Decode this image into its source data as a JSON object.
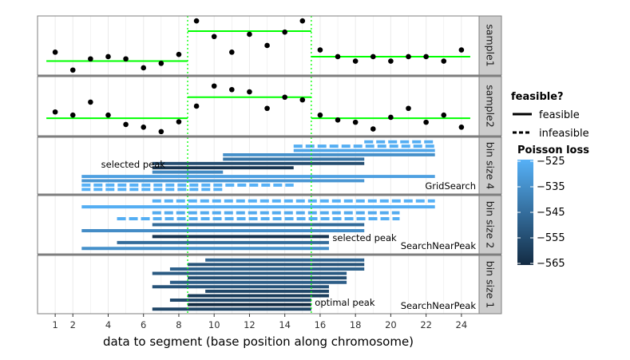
{
  "chart_data": {
    "type": "faceted-segment-plot",
    "xlabel": "data to segment (base position along chromosome)",
    "xlim": [
      0,
      25
    ],
    "x_ticks": [
      1,
      2,
      4,
      6,
      8,
      10,
      12,
      14,
      16,
      18,
      20,
      22,
      24
    ],
    "peak_boundaries": [
      8.5,
      15.5
    ],
    "panels": [
      {
        "label": "sample1",
        "type": "data",
        "ylim": [
          0,
          10
        ],
        "points": [
          [
            1,
            4.4
          ],
          [
            2,
            0.4
          ],
          [
            3,
            2.9
          ],
          [
            4,
            3.4
          ],
          [
            5,
            2.9
          ],
          [
            6,
            0.9
          ],
          [
            7,
            1.9
          ],
          [
            8,
            3.9
          ],
          [
            9,
            11.4
          ],
          [
            10,
            7.9
          ],
          [
            11,
            4.4
          ],
          [
            12,
            8.4
          ],
          [
            13,
            5.9
          ],
          [
            14,
            8.9
          ],
          [
            15,
            11.4
          ],
          [
            16,
            4.9
          ],
          [
            17,
            3.4
          ],
          [
            18,
            2.4
          ],
          [
            19,
            3.4
          ],
          [
            20,
            2.4
          ],
          [
            21,
            3.4
          ],
          [
            22,
            3.4
          ],
          [
            23,
            2.4
          ],
          [
            24,
            4.9
          ]
        ],
        "segments": [
          [
            0.5,
            8.5,
            2.4
          ],
          [
            8.5,
            15.5,
            9.1
          ],
          [
            15.5,
            24.5,
            3.4
          ]
        ]
      },
      {
        "label": "sample2",
        "type": "data",
        "ylim": [
          0,
          10
        ],
        "points": [
          [
            1,
            4.6
          ],
          [
            2,
            3.9
          ],
          [
            3,
            6.8
          ],
          [
            4,
            3.9
          ],
          [
            5,
            1.8
          ],
          [
            6,
            1.2
          ],
          [
            7,
            0.2
          ],
          [
            8,
            2.4
          ],
          [
            9,
            5.9
          ],
          [
            10,
            10.4
          ],
          [
            11,
            9.6
          ],
          [
            12,
            9.1
          ],
          [
            13,
            5.4
          ],
          [
            14,
            7.9
          ],
          [
            15,
            7.3
          ],
          [
            16,
            3.9
          ],
          [
            17,
            2.8
          ],
          [
            18,
            2.3
          ],
          [
            19,
            0.8
          ],
          [
            20,
            3.4
          ],
          [
            21,
            5.4
          ],
          [
            22,
            2.3
          ],
          [
            23,
            3.9
          ],
          [
            24,
            1.2
          ]
        ],
        "segments": [
          [
            0.5,
            8.5,
            3.2
          ],
          [
            8.5,
            15.5,
            7.9
          ],
          [
            15.5,
            24.5,
            3.2
          ]
        ]
      },
      {
        "label": "bin size 4",
        "type": "peaks",
        "algorithm": "GridSearch",
        "annotation": "selected peak",
        "annotation_x": 3.6,
        "rows": [
          {
            "start": 18.5,
            "end": 22.5,
            "loss": -526,
            "feasible": false
          },
          {
            "start": 14.5,
            "end": 22.5,
            "loss": -526,
            "feasible": false
          },
          {
            "start": 14.5,
            "end": 22.5,
            "loss": -528,
            "feasible": true
          },
          {
            "start": 10.5,
            "end": 22.5,
            "loss": -535,
            "feasible": true
          },
          {
            "start": 10.5,
            "end": 18.5,
            "loss": -543,
            "feasible": true
          },
          {
            "start": 6.5,
            "end": 18.5,
            "loss": -555,
            "feasible": true
          },
          {
            "start": 6.5,
            "end": 14.5,
            "loss": -562,
            "feasible": true
          },
          {
            "start": 6.5,
            "end": 10.5,
            "loss": -537,
            "feasible": true
          },
          {
            "start": 2.5,
            "end": 22.5,
            "loss": -530,
            "feasible": true
          },
          {
            "start": 2.5,
            "end": 18.5,
            "loss": -533,
            "feasible": true
          },
          {
            "start": 2.5,
            "end": 14.5,
            "loss": -525,
            "feasible": false
          },
          {
            "start": 2.5,
            "end": 10.5,
            "loss": -525,
            "feasible": false
          }
        ]
      },
      {
        "label": "bin size 2",
        "type": "peaks",
        "algorithm": "SearchNearPeak",
        "annotation": "selected peak",
        "annotation_x": 16.7,
        "rows": [
          {
            "start": 6.5,
            "end": 22.5,
            "loss": -525,
            "feasible": false
          },
          {
            "start": 2.5,
            "end": 22.5,
            "loss": -526,
            "feasible": true
          },
          {
            "start": 6.5,
            "end": 20.5,
            "loss": -527,
            "feasible": false
          },
          {
            "start": 4.5,
            "end": 20.5,
            "loss": -526,
            "feasible": false
          },
          {
            "start": 6.5,
            "end": 18.5,
            "loss": -546,
            "feasible": true
          },
          {
            "start": 2.5,
            "end": 18.5,
            "loss": -536,
            "feasible": true
          },
          {
            "start": 6.5,
            "end": 16.5,
            "loss": -562,
            "feasible": true
          },
          {
            "start": 4.5,
            "end": 16.5,
            "loss": -546,
            "feasible": true
          },
          {
            "start": 2.5,
            "end": 16.5,
            "loss": -535,
            "feasible": true
          }
        ]
      },
      {
        "label": "bin size 1",
        "type": "peaks",
        "algorithm": "SearchNearPeak",
        "annotation": "optimal peak",
        "annotation_x": 15.7,
        "rows": [
          {
            "start": 9.5,
            "end": 18.5,
            "loss": -548,
            "feasible": true
          },
          {
            "start": 8.5,
            "end": 18.5,
            "loss": -553,
            "feasible": true
          },
          {
            "start": 7.5,
            "end": 18.5,
            "loss": -549,
            "feasible": true
          },
          {
            "start": 6.5,
            "end": 17.5,
            "loss": -551,
            "feasible": true
          },
          {
            "start": 8.5,
            "end": 17.5,
            "loss": -555,
            "feasible": true
          },
          {
            "start": 7.5,
            "end": 17.5,
            "loss": -550,
            "feasible": true
          },
          {
            "start": 6.5,
            "end": 16.5,
            "loss": -553,
            "feasible": true
          },
          {
            "start": 9.5,
            "end": 16.5,
            "loss": -557,
            "feasible": true
          },
          {
            "start": 8.5,
            "end": 16.5,
            "loss": -560,
            "feasible": true
          },
          {
            "start": 7.5,
            "end": 15.5,
            "loss": -556,
            "feasible": true
          },
          {
            "start": 8.5,
            "end": 15.5,
            "loss": -565,
            "feasible": true
          },
          {
            "start": 6.5,
            "end": 15.5,
            "loss": -557,
            "feasible": true
          }
        ]
      }
    ],
    "legend_feasible": {
      "title": "feasible?",
      "entries": [
        {
          "label": "feasible",
          "linetype": "solid"
        },
        {
          "label": "infeasible",
          "linetype": "dashed"
        }
      ]
    },
    "legend_loss": {
      "title": "Poisson loss",
      "range": [
        -565,
        -525
      ],
      "breaks": [
        -525,
        -535,
        -545,
        -555,
        -565
      ],
      "break_labels": [
        "−525",
        "−535",
        "−545",
        "−555",
        "−565"
      ],
      "low_color": "#132b43",
      "high_color": "#56b1f7"
    },
    "colors": {
      "segment": "#00ff00",
      "boundary": "#00ff00",
      "point": "#000000",
      "strip_bg": "#cccccc",
      "grid": "#ebebeb",
      "frame": "#7f7f7f"
    }
  }
}
